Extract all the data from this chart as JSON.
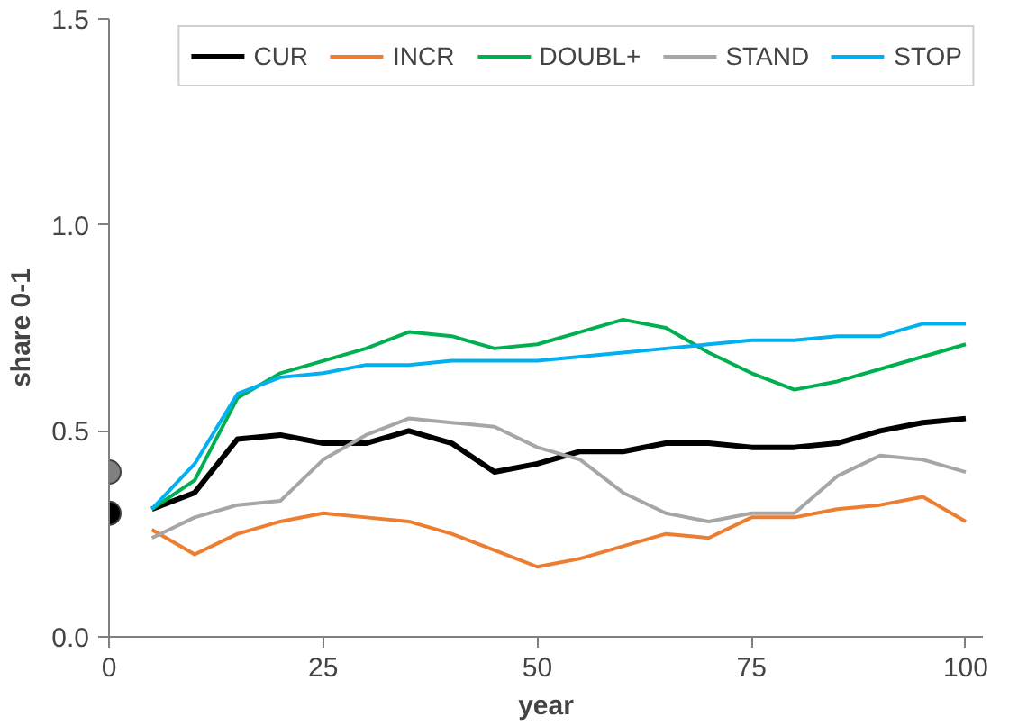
{
  "chart_data": {
    "type": "line",
    "xlabel": "year",
    "ylabel": "share 0-1",
    "xlim": [
      0,
      102
    ],
    "ylim": [
      0,
      1.5
    ],
    "xticks": [
      0,
      25,
      50,
      75,
      100
    ],
    "yticks": [
      {
        "value": 0,
        "label": "0.0"
      },
      {
        "value": 0.5,
        "label": "0.5"
      },
      {
        "value": 1,
        "label": "1.0"
      },
      {
        "value": 1.5,
        "label": "1.5"
      }
    ],
    "grid": false,
    "legend": "top",
    "marker": "none",
    "line_style": "solid",
    "x": [
      5,
      10,
      15,
      20,
      25,
      30,
      35,
      40,
      45,
      50,
      55,
      60,
      65,
      70,
      75,
      80,
      85,
      90,
      95,
      100
    ],
    "series": [
      {
        "name": "CUR",
        "color": "#000000",
        "values": [
          0.31,
          0.35,
          0.48,
          0.49,
          0.47,
          0.47,
          0.5,
          0.47,
          0.4,
          0.42,
          0.45,
          0.45,
          0.47,
          0.47,
          0.46,
          0.46,
          0.47,
          0.5,
          0.52,
          0.53
        ]
      },
      {
        "name": "INCR",
        "color": "#ed7d31",
        "values": [
          0.26,
          0.2,
          0.25,
          0.28,
          0.3,
          0.29,
          0.28,
          0.25,
          0.21,
          0.17,
          0.19,
          0.22,
          0.25,
          0.24,
          0.29,
          0.29,
          0.31,
          0.32,
          0.34,
          0.28
        ]
      },
      {
        "name": "DOUBL+",
        "color": "#00b050",
        "values": [
          0.31,
          0.38,
          0.58,
          0.64,
          0.67,
          0.7,
          0.74,
          0.73,
          0.7,
          0.71,
          0.74,
          0.77,
          0.75,
          0.69,
          0.64,
          0.6,
          0.62,
          0.65,
          0.68,
          0.71
        ]
      },
      {
        "name": "STAND",
        "color": "#a6a6a6",
        "values": [
          0.24,
          0.29,
          0.32,
          0.33,
          0.43,
          0.49,
          0.53,
          0.52,
          0.51,
          0.46,
          0.43,
          0.35,
          0.3,
          0.28,
          0.3,
          0.3,
          0.39,
          0.44,
          0.43,
          0.4
        ]
      },
      {
        "name": "STOP",
        "color": "#00b0f0",
        "values": [
          0.31,
          0.42,
          0.59,
          0.63,
          0.64,
          0.66,
          0.66,
          0.67,
          0.67,
          0.67,
          0.68,
          0.69,
          0.7,
          0.71,
          0.72,
          0.72,
          0.73,
          0.73,
          0.76,
          0.76
        ]
      },
      {
        "type": "scatter",
        "marker": "circle",
        "color": "#808080",
        "x": [
          0
        ],
        "values": [
          0.4
        ]
      },
      {
        "type": "scatter",
        "marker": "circle",
        "color": "#000000",
        "x": [
          0
        ],
        "values": [
          0.3
        ]
      }
    ]
  }
}
